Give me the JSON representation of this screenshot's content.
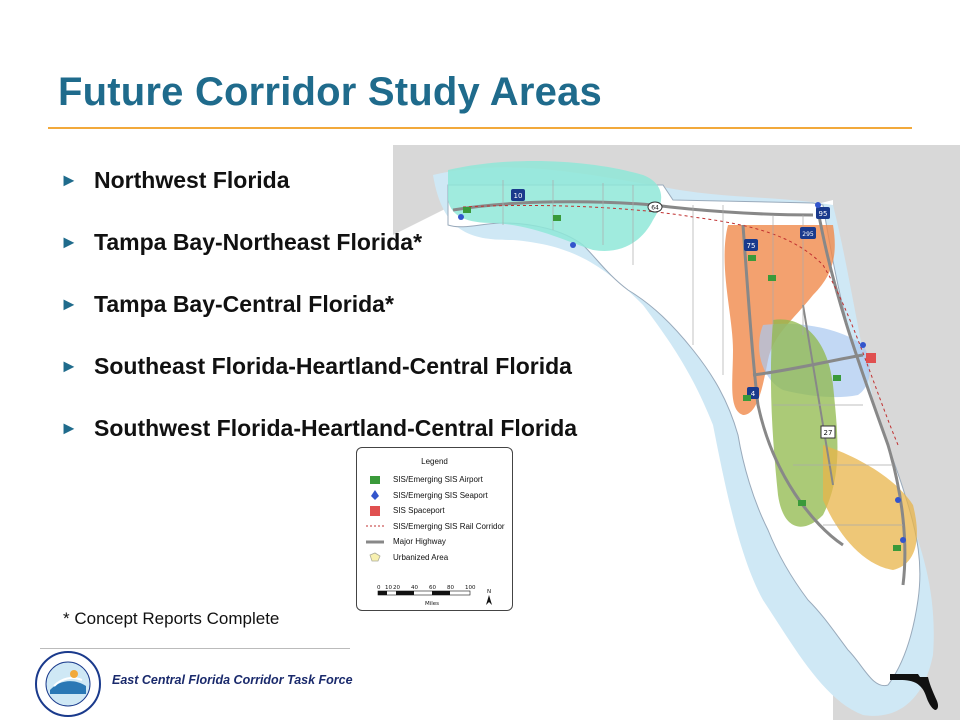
{
  "slide": {
    "title": "Future Corridor Study Areas",
    "bullets": [
      "Northwest Florida",
      "Tampa Bay-Northeast Florida*",
      "Tampa Bay-Central Florida*",
      "Southeast Florida-Heartland-Central Florida",
      "Southwest Florida-Heartland-Central Florida"
    ],
    "footnote": "* Concept Reports Complete"
  },
  "legend": {
    "title": "Legend",
    "items": [
      {
        "label": "SIS/Emerging SIS Airport",
        "icon": "airport-icon"
      },
      {
        "label": "SIS/Emerging SIS Seaport",
        "icon": "seaport-icon"
      },
      {
        "label": "SIS Spaceport",
        "icon": "spaceport-icon"
      },
      {
        "label": "SIS/Emerging SIS Rail Corridor",
        "icon": "rail-icon"
      },
      {
        "label": "Major Highway",
        "icon": "highway-icon"
      },
      {
        "label": "Urbanized Area",
        "icon": "urban-area-icon"
      }
    ],
    "scale": {
      "ticks": [
        "0",
        "10",
        "20",
        "40",
        "60",
        "80",
        "100"
      ],
      "unit": "Miles",
      "north": "N"
    }
  },
  "map": {
    "colors": {
      "northwest": "#8fe8d8",
      "tampa_northeast": "#f08a4b",
      "tampa_central": "#a8c8f0",
      "southeast": "#e8b44a",
      "southwest": "#8fb84a",
      "water": "#cfe8f5",
      "land": "#ffffff",
      "outside": "#d8d8d8"
    },
    "labels": {
      "i10": "10",
      "i75": "75",
      "i95": "95",
      "i295": "295",
      "us27": "27",
      "i4": "4",
      "sr64": "64"
    }
  },
  "footer": {
    "organization": "East Central Florida Corridor Task Force",
    "seal_text": "EAST CENTRAL FLORIDA CORRIDOR TASK FORCE",
    "accent": "#1f6b8c"
  }
}
